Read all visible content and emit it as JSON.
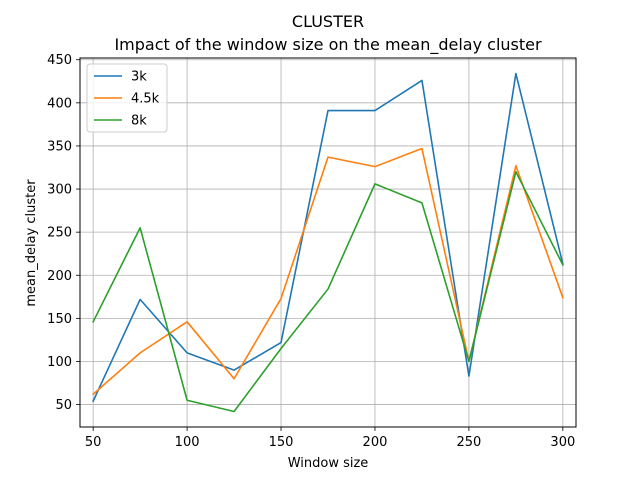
{
  "chart_data": {
    "type": "line",
    "suptitle": "CLUSTER",
    "title": "Impact of the window size on the mean_delay cluster",
    "xlabel": "Window size",
    "ylabel": "mean_delay cluster",
    "x": [
      50,
      75,
      100,
      125,
      150,
      175,
      200,
      225,
      250,
      275,
      300
    ],
    "xlim": [
      43,
      307
    ],
    "ylim": [
      24,
      452
    ],
    "xticks": [
      50,
      100,
      150,
      200,
      250,
      300
    ],
    "yticks": [
      50,
      100,
      150,
      200,
      250,
      300,
      350,
      400,
      450
    ],
    "grid": true,
    "legend_position": "upper left",
    "series": [
      {
        "name": "3k",
        "color": "#1f77b4",
        "values": [
          54,
          172,
          110,
          90,
          122,
          391,
          391,
          426,
          83,
          434,
          213
        ]
      },
      {
        "name": "4.5k",
        "color": "#ff7f0e",
        "values": [
          62,
          110,
          146,
          80,
          173,
          337,
          326,
          347,
          100,
          327,
          174
        ]
      },
      {
        "name": "8k",
        "color": "#2ca02c",
        "values": [
          146,
          255,
          55,
          42,
          115,
          184,
          306,
          284,
          100,
          320,
          212
        ]
      }
    ]
  }
}
